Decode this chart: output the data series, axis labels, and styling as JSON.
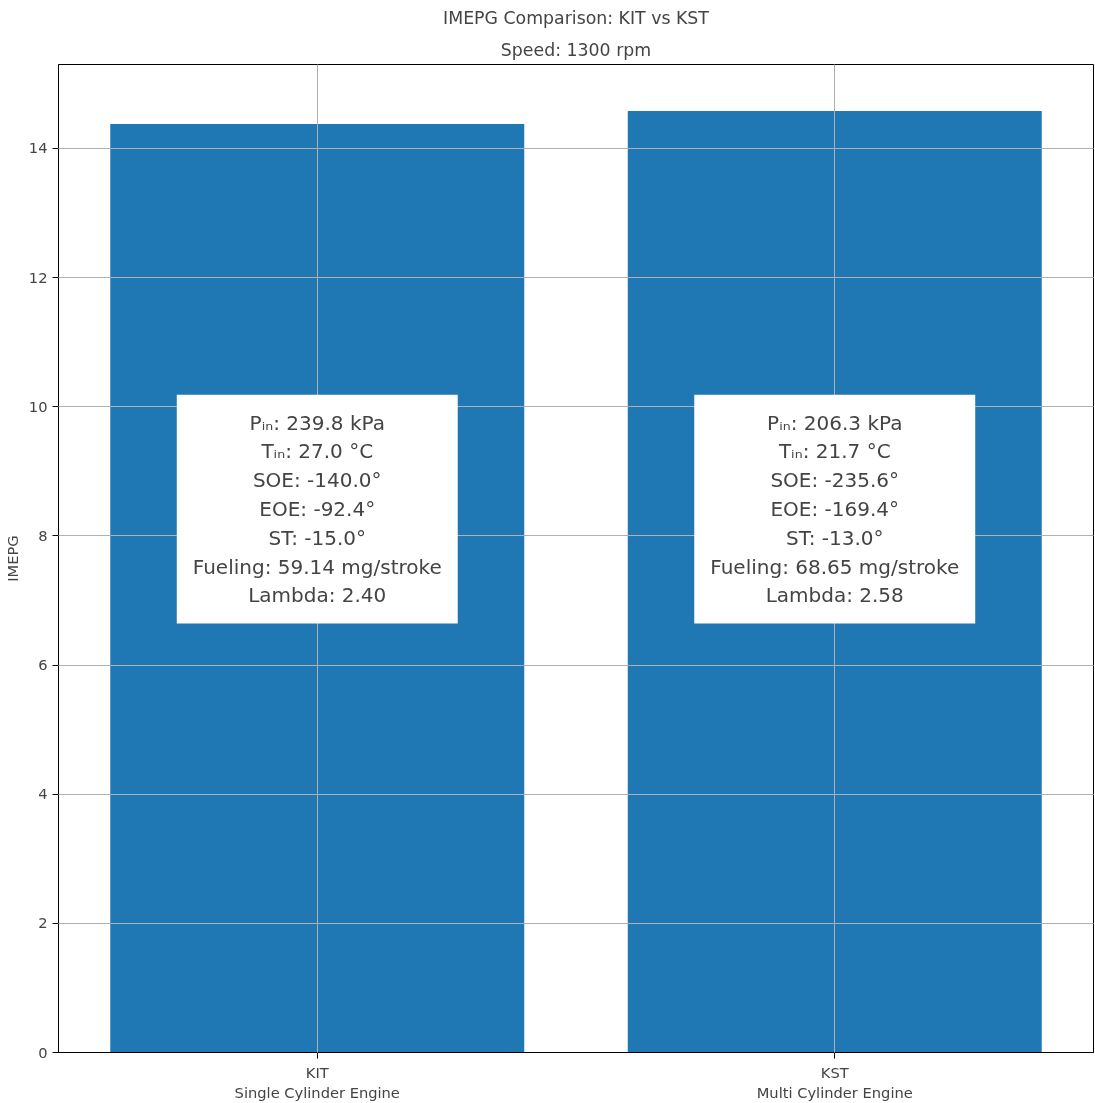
{
  "chart_data": {
    "type": "bar",
    "title": "IMEPG Comparison: KIT vs KST",
    "subtitle": "Speed: 1300 rpm",
    "ylabel": "IMEPG",
    "categories": [
      "KIT\nSingle Cylinder Engine",
      "KST\nMulti Cylinder Engine"
    ],
    "values": [
      14.38,
      14.58
    ],
    "color": "#1f77b4",
    "ylim": [
      0,
      15.3
    ],
    "yticks": [
      0,
      2,
      4,
      6,
      8,
      10,
      12,
      14
    ],
    "grid": true,
    "annotations": [
      "Pᵢₙ: 239.8 kPa\nTᵢₙ: 27.0 °C\nSOE: -140.0°\nEOE: -92.4°\nST: -15.0°\nFueling: 59.14 mg/stroke\nLambda: 2.40",
      "Pᵢₙ: 206.3 kPa\nTᵢₙ: 21.7 °C\nSOE: -235.6°\nEOE: -169.4°\nST: -13.0°\nFueling: 68.65 mg/stroke\nLambda: 2.58"
    ]
  }
}
